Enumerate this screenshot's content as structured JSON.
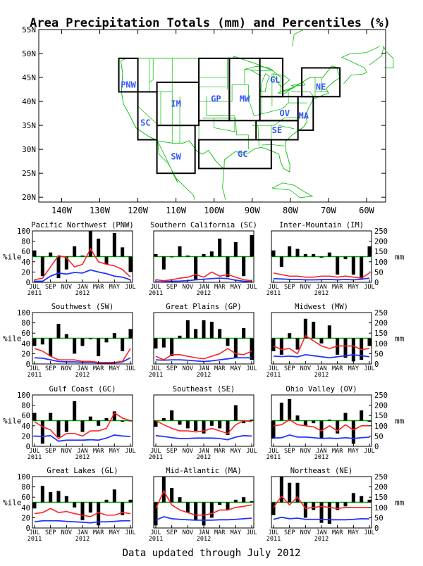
{
  "title": "Area Precipitation Totals (mm) and Percentiles (%)",
  "footer": "Data updated through July 2012",
  "colors": {
    "bars": "#000000",
    "percentile_line": "#ff2222",
    "mm_line": "#2233ff",
    "reference_line": "#00aa00",
    "map_lines": "#00bb00",
    "region_labels": "#3355ff"
  },
  "map": {
    "lat_ticks": [
      "55N",
      "50N",
      "45N",
      "40N",
      "35N",
      "30N",
      "25N",
      "20N"
    ],
    "lon_ticks": [
      "140W",
      "130W",
      "120W",
      "110W",
      "100W",
      "90W",
      "80W",
      "70W",
      "60W"
    ],
    "lat_range": [
      19,
      55
    ],
    "lon_range": [
      -146,
      -55
    ],
    "regions": [
      {
        "label": "PNW",
        "lat": 43.5,
        "lon": -122.5,
        "box": [
          [
            -125,
            42
          ],
          [
            -120,
            49
          ]
        ]
      },
      {
        "label": "SC",
        "lat": 35.5,
        "lon": -118,
        "box": [
          [
            -120,
            32
          ],
          [
            -115,
            42
          ]
        ]
      },
      {
        "label": "IM",
        "lat": 39.5,
        "lon": -110,
        "box": [
          [
            -115,
            35
          ],
          [
            -104,
            44
          ]
        ]
      },
      {
        "label": "SW",
        "lat": 28.5,
        "lon": -110,
        "box": [
          [
            -115,
            25
          ],
          [
            -105,
            35
          ]
        ]
      },
      {
        "label": "GP",
        "lat": 40.5,
        "lon": -99.5,
        "box": [
          [
            -104,
            36
          ],
          [
            -96,
            49
          ]
        ]
      },
      {
        "label": "MW",
        "lat": 40.5,
        "lon": -92,
        "box": [
          [
            -96,
            36
          ],
          [
            -88,
            49
          ]
        ]
      },
      {
        "label": "GL",
        "lat": 44.5,
        "lon": -84,
        "box": [
          [
            -88,
            41
          ],
          [
            -82,
            49
          ]
        ]
      },
      {
        "label": "NE",
        "lat": 43,
        "lon": -72,
        "box": [
          [
            -77,
            41
          ],
          [
            -67,
            47
          ]
        ]
      },
      {
        "label": "OV",
        "lat": 37.5,
        "lon": -81.5,
        "box": [
          [
            -88,
            36
          ],
          [
            -78,
            41
          ]
        ]
      },
      {
        "label": "MA",
        "lat": 37,
        "lon": -76.5,
        "box": [
          [
            -78,
            34
          ],
          [
            -74,
            41
          ]
        ]
      },
      {
        "label": "SE",
        "lat": 34,
        "lon": -83.5,
        "box": [
          [
            -89,
            32
          ],
          [
            -78,
            36
          ]
        ]
      },
      {
        "label": "GC",
        "lat": 29,
        "lon": -92.5,
        "box": [
          [
            -104,
            26
          ],
          [
            -85,
            32
          ]
        ]
      }
    ]
  },
  "panel_axes": {
    "percentile_label": "%ile",
    "mm_label": "mm",
    "y_ticks_left": [
      "0",
      "20",
      "40",
      "60",
      "80",
      "100"
    ],
    "y_ticks_right": [
      "0",
      "50",
      "100",
      "150",
      "200",
      "250"
    ],
    "x_ticks": [
      "JUL",
      "SEP",
      "NOV",
      "JAN",
      "MAR",
      "MAY",
      "JUL"
    ],
    "x_years": [
      "2011",
      "2012"
    ]
  },
  "chart_data": [
    {
      "type": "bar",
      "title": "Pacific Northwest (PNW)",
      "ylim": [
        0,
        100
      ],
      "y2lim": [
        0,
        250
      ],
      "months": 13,
      "bars": [
        62,
        12,
        58,
        8,
        25,
        70,
        52,
        100,
        85,
        35,
        96,
        68,
        20
      ],
      "percentile": [
        5,
        8,
        30,
        52,
        48,
        30,
        35,
        65,
        40,
        35,
        32,
        25,
        10
      ],
      "mm": [
        5,
        5,
        30,
        45,
        40,
        48,
        45,
        60,
        50,
        42,
        30,
        25,
        12
      ]
    },
    {
      "type": "bar",
      "title": "Southern California (SC)",
      "ylim": [
        0,
        100
      ],
      "y2lim": [
        0,
        250
      ],
      "months": 13,
      "bars": [
        55,
        25,
        50,
        70,
        52,
        5,
        55,
        60,
        85,
        10,
        78,
        12,
        92
      ],
      "percentile": [
        5,
        3,
        5,
        8,
        10,
        15,
        10,
        20,
        12,
        15,
        10,
        5,
        3
      ],
      "mm": [
        2,
        3,
        5,
        6,
        8,
        12,
        15,
        18,
        20,
        18,
        10,
        5,
        3
      ]
    },
    {
      "type": "bar",
      "title": "Inter-Mountain (IM)",
      "ylim": [
        0,
        100
      ],
      "y2lim": [
        0,
        250
      ],
      "months": 13,
      "bars": [
        62,
        30,
        70,
        65,
        55,
        55,
        48,
        58,
        15,
        45,
        15,
        5,
        70
      ],
      "percentile": [
        18,
        15,
        12,
        12,
        10,
        10,
        12,
        12,
        10,
        12,
        10,
        8,
        18
      ],
      "mm": [
        18,
        16,
        14,
        14,
        12,
        12,
        13,
        14,
        12,
        14,
        12,
        15,
        20
      ]
    },
    {
      "type": "bar",
      "title": "Southwest (SW)",
      "ylim": [
        0,
        100
      ],
      "y2lim": [
        0,
        250
      ],
      "months": 13,
      "bars": [
        35,
        38,
        15,
        78,
        58,
        20,
        35,
        48,
        15,
        42,
        60,
        25,
        68
      ],
      "percentile": [
        30,
        25,
        15,
        8,
        8,
        8,
        5,
        5,
        3,
        3,
        3,
        5,
        30
      ],
      "mm": [
        30,
        28,
        20,
        12,
        10,
        10,
        8,
        8,
        5,
        5,
        5,
        10,
        30
      ]
    },
    {
      "type": "bar",
      "title": "Great Plains (GP)",
      "ylim": [
        0,
        100
      ],
      "y2lim": [
        0,
        250
      ],
      "months": 13,
      "bars": [
        30,
        32,
        15,
        55,
        85,
        68,
        85,
        82,
        68,
        35,
        12,
        70,
        8
      ],
      "percentile": [
        15,
        8,
        18,
        18,
        15,
        12,
        10,
        15,
        20,
        30,
        20,
        18,
        25
      ],
      "mm": [
        20,
        18,
        20,
        20,
        18,
        15,
        12,
        15,
        20,
        25,
        30,
        30,
        30
      ]
    },
    {
      "type": "bar",
      "title": "Midwest (MW)",
      "ylim": [
        0,
        100
      ],
      "y2lim": [
        0,
        250
      ],
      "months": 13,
      "bars": [
        25,
        18,
        60,
        28,
        88,
        82,
        40,
        75,
        18,
        12,
        5,
        8,
        35
      ],
      "percentile": [
        35,
        28,
        30,
        20,
        55,
        45,
        35,
        30,
        35,
        35,
        35,
        28,
        30
      ],
      "mm": [
        38,
        36,
        38,
        35,
        45,
        40,
        35,
        30,
        35,
        40,
        45,
        40,
        35
      ]
    },
    {
      "type": "bar",
      "title": "Gulf Coast (GC)",
      "ylim": [
        0,
        100
      ],
      "y2lim": [
        0,
        250
      ],
      "months": 13,
      "bars": [
        65,
        5,
        65,
        18,
        28,
        88,
        28,
        58,
        40,
        55,
        68,
        48,
        50
      ],
      "percentile": [
        48,
        38,
        32,
        15,
        25,
        25,
        20,
        30,
        30,
        35,
        65,
        55,
        50
      ],
      "mm": [
        50,
        48,
        52,
        25,
        30,
        30,
        30,
        32,
        30,
        40,
        55,
        50,
        48
      ]
    },
    {
      "type": "bar",
      "title": "Southeast (SE)",
      "ylim": [
        0,
        100
      ],
      "y2lim": [
        0,
        250
      ],
      "months": 13,
      "bars": [
        38,
        55,
        70,
        42,
        35,
        30,
        25,
        40,
        35,
        22,
        80,
        45,
        52
      ],
      "percentile": [
        50,
        42,
        35,
        30,
        30,
        28,
        30,
        35,
        30,
        25,
        42,
        50,
        48
      ],
      "mm": [
        52,
        48,
        42,
        38,
        38,
        40,
        40,
        40,
        38,
        32,
        45,
        52,
        50
      ]
    },
    {
      "type": "bar",
      "title": "Ohio Valley (OV)",
      "ylim": [
        0,
        100
      ],
      "y2lim": [
        0,
        250
      ],
      "months": 13,
      "bars": [
        15,
        85,
        92,
        60,
        40,
        45,
        15,
        52,
        25,
        65,
        5,
        70,
        48
      ],
      "percentile": [
        40,
        42,
        52,
        42,
        40,
        38,
        30,
        40,
        30,
        42,
        32,
        40,
        40
      ],
      "mm": [
        40,
        42,
        55,
        45,
        45,
        42,
        38,
        40,
        38,
        42,
        38,
        42,
        44
      ]
    },
    {
      "type": "bar",
      "title": "Great Lakes (GL)",
      "ylim": [
        0,
        100
      ],
      "y2lim": [
        0,
        250
      ],
      "months": 13,
      "bars": [
        38,
        82,
        70,
        72,
        62,
        40,
        15,
        30,
        5,
        55,
        75,
        25,
        55
      ],
      "percentile": [
        28,
        30,
        38,
        30,
        32,
        28,
        25,
        22,
        30,
        25,
        25,
        30,
        28
      ],
      "mm": [
        30,
        35,
        35,
        35,
        32,
        30,
        28,
        25,
        30,
        30,
        32,
        35,
        35
      ]
    },
    {
      "type": "bar",
      "title": "Mid-Atlantic (MA)",
      "ylim": [
        0,
        100
      ],
      "y2lim": [
        0,
        250
      ],
      "months": 13,
      "bars": [
        5,
        100,
        78,
        60,
        30,
        15,
        5,
        20,
        45,
        35,
        55,
        60,
        52
      ],
      "percentile": [
        38,
        72,
        45,
        35,
        30,
        25,
        25,
        28,
        35,
        35,
        40,
        42,
        45
      ],
      "mm": [
        38,
        55,
        45,
        42,
        40,
        38,
        38,
        38,
        40,
        40,
        42,
        45,
        48
      ]
    },
    {
      "type": "bar",
      "title": "Northeast (NE)",
      "ylim": [
        0,
        100
      ],
      "y2lim": [
        0,
        250
      ],
      "months": 13,
      "bars": [
        25,
        100,
        88,
        88,
        20,
        35,
        10,
        8,
        35,
        42,
        68,
        62,
        55
      ],
      "percentile": [
        40,
        62,
        45,
        60,
        38,
        40,
        42,
        40,
        38,
        40,
        40,
        40,
        40
      ],
      "mm": [
        42,
        52,
        45,
        48,
        42,
        42,
        42,
        40,
        40,
        40,
        42,
        45,
        44
      ]
    }
  ]
}
